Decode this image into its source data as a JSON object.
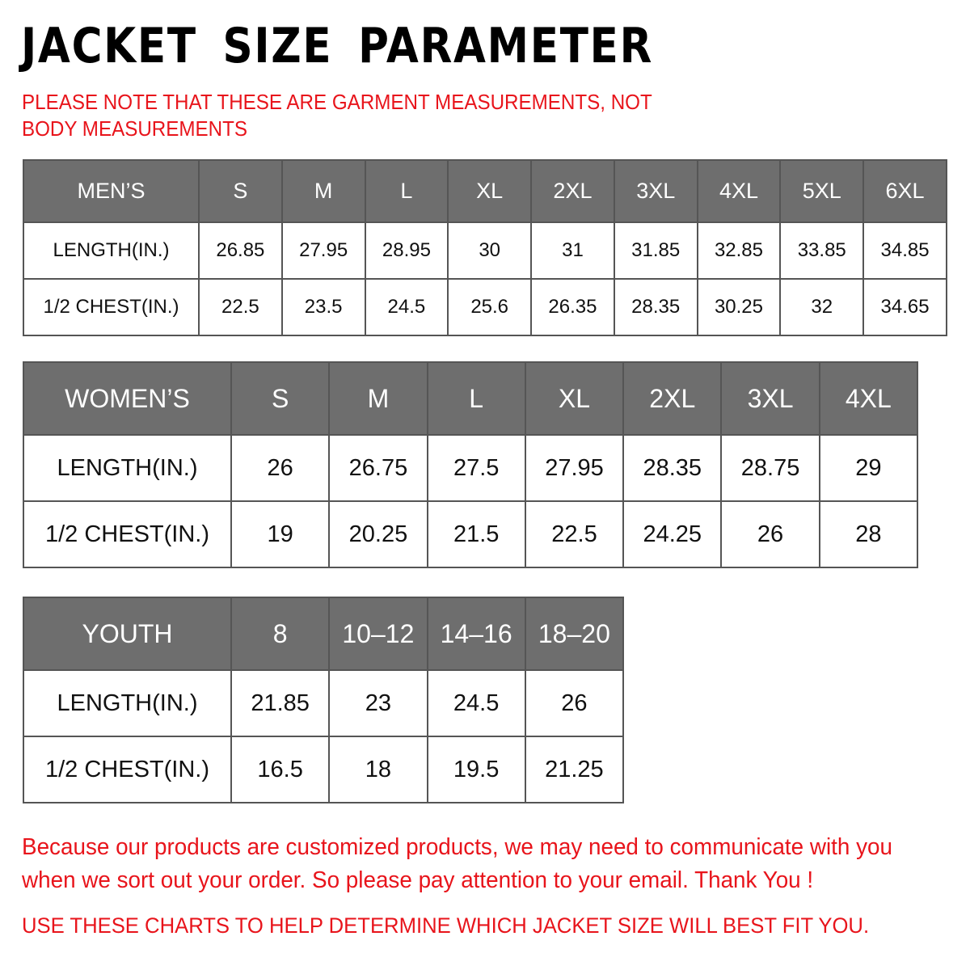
{
  "title": "JACKET SIZE PARAMETER",
  "note": "PLEASE NOTE THAT THESE ARE GARMENT MEASUREMENTS, NOT BODY MEASUREMENTS",
  "tables": [
    {
      "id": "men",
      "header": [
        "MEN’S",
        "S",
        "M",
        "L",
        "XL",
        "2XL",
        "3XL",
        "4XL",
        "5XL",
        "6XL"
      ],
      "rows": [
        [
          "LENGTH(IN.)",
          "26.85",
          "27.95",
          "28.95",
          "30",
          "31",
          "31.85",
          "32.85",
          "33.85",
          "34.85"
        ],
        [
          "1/2 CHEST(IN.)",
          "22.5",
          "23.5",
          "24.5",
          "25.6",
          "26.35",
          "28.35",
          "30.25",
          "32",
          "34.65"
        ]
      ]
    },
    {
      "id": "women",
      "header": [
        "WOMEN’S",
        "S",
        "M",
        "L",
        "XL",
        "2XL",
        "3XL",
        "4XL"
      ],
      "rows": [
        [
          "LENGTH(IN.)",
          "26",
          "26.75",
          "27.5",
          "27.95",
          "28.35",
          "28.75",
          "29"
        ],
        [
          "1/2 CHEST(IN.)",
          "19",
          "20.25",
          "21.5",
          "22.5",
          "24.25",
          "26",
          "28"
        ]
      ]
    },
    {
      "id": "youth",
      "header": [
        "YOUTH",
        "8",
        "10–12",
        "14–16",
        "18–20"
      ],
      "rows": [
        [
          "LENGTH(IN.)",
          "21.85",
          "23",
          "24.5",
          "26"
        ],
        [
          "1/2 CHEST(IN.)",
          "16.5",
          "18",
          "19.5",
          "21.25"
        ]
      ]
    }
  ],
  "footer": "Because our products are customized products, we may need to communicate with you when we sort out your order. So please pay attention to your email. Thank You !",
  "footer2": "USE THESE CHARTS TO HELP DETERMINE WHICH JACKET SIZE WILL BEST FIT YOU.",
  "colors": {
    "accent_red": "#e8141b",
    "header_gray": "#6e6e6e"
  }
}
